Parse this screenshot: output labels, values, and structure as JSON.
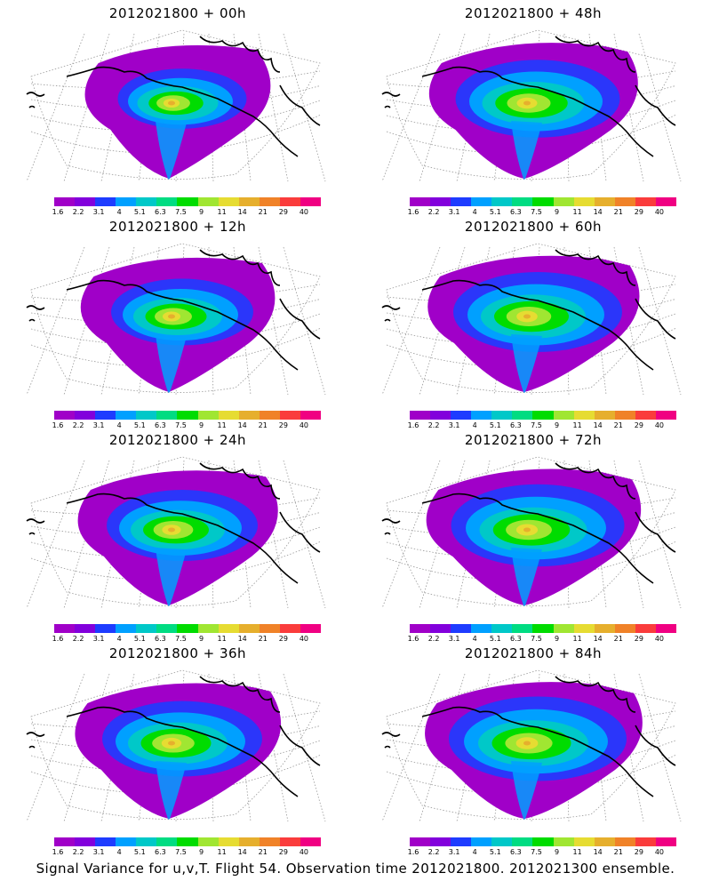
{
  "panels": [
    {
      "title": "2012021800 + 00h",
      "intensity": 0.35
    },
    {
      "title": "2012021800 + 48h",
      "intensity": 0.75
    },
    {
      "title": "2012021800 + 12h",
      "intensity": 0.5
    },
    {
      "title": "2012021800 + 60h",
      "intensity": 0.8
    },
    {
      "title": "2012021800 + 24h",
      "intensity": 0.6
    },
    {
      "title": "2012021800 + 72h",
      "intensity": 0.85
    },
    {
      "title": "2012021800 + 36h",
      "intensity": 0.7
    },
    {
      "title": "2012021800 + 84h",
      "intensity": 0.9
    }
  ],
  "colorbar": {
    "labels": [
      "1.6",
      "2.2",
      "3.1",
      "4",
      "5.1",
      "6.3",
      "7.5",
      "9",
      "11",
      "14",
      "21",
      "29",
      "40"
    ],
    "colors": [
      "#a000c8",
      "#8200dc",
      "#1e3cff",
      "#00a0ff",
      "#00c8c8",
      "#00dc82",
      "#00dc00",
      "#a0e632",
      "#e6dc32",
      "#e6af2d",
      "#f08228",
      "#fa3c3c",
      "#f00082"
    ]
  },
  "footer": "Signal Variance for u,v,T. Flight 54. Observation time 2012021800. 2012021300 ensemble."
}
